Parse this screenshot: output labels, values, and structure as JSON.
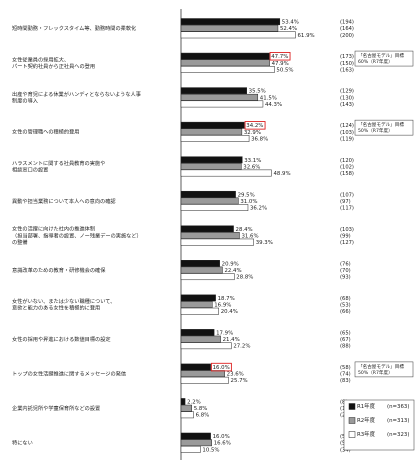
{
  "chart_data": {
    "type": "bar",
    "orientation": "horizontal",
    "xlim": [
      0,
      100
    ],
    "categories": [
      [
        "短時間勤務・フレックスタイム等、勤務時間の柔軟化"
      ],
      [
        "女性従業員の採用拡大、",
        "パート契約社員から正社員への登用"
      ],
      [
        "出産や育児による休業がハンディとならないような人事",
        "制度の導入"
      ],
      [
        "女性の管理職への積極的登用"
      ],
      [
        "ハラスメントに関する社員教育の実施や",
        "相談窓口の設置"
      ],
      [
        "異動や担当業務について本人への意向の確認"
      ],
      [
        "女性の活躍に向けた社内の推進体制",
        "（担当部署、指導者の設置、ノー残業デーの実施など）",
        "の整備"
      ],
      [
        "意識改革のための教育・研修機会の確保"
      ],
      [
        "女性がいない、または少ない職種について、",
        "意欲と能力のある女性を積極的に登用"
      ],
      [
        "女性の採用や昇進における数値目標の設定"
      ],
      [
        "トップの女性活躍推進に関するメッセージの発信"
      ],
      [
        "企業内託児所や学童保育所などの設置"
      ],
      [
        "特にない"
      ]
    ],
    "series": [
      {
        "name": "R1年度",
        "color": "#111111",
        "values": [
          53.4,
          47.7,
          35.5,
          34.2,
          33.1,
          29.5,
          28.4,
          20.9,
          18.7,
          17.9,
          16.0,
          2.2,
          16.0
        ],
        "counts": [
          "(194)",
          "(173)",
          "(129)",
          "(124)",
          "(120)",
          "(107)",
          "(103)",
          "(76)",
          "(68)",
          "(65)",
          "(58)",
          "(8)",
          "(58)"
        ]
      },
      {
        "name": "R2年度",
        "color": "#9a9a9a",
        "values": [
          52.4,
          47.9,
          41.5,
          32.9,
          32.6,
          31.0,
          31.6,
          22.4,
          16.9,
          21.4,
          23.6,
          5.8,
          16.6
        ],
        "counts": [
          "(164)",
          "(150)",
          "(130)",
          "(103)",
          "(102)",
          "(97)",
          "(99)",
          "(70)",
          "(53)",
          "(67)",
          "(74)",
          "(18)",
          "(52)"
        ]
      },
      {
        "name": "R3年度",
        "color": "#ffffff",
        "values": [
          61.9,
          50.5,
          44.3,
          36.8,
          48.9,
          36.2,
          39.3,
          28.8,
          20.4,
          27.2,
          25.7,
          6.8,
          10.5
        ],
        "counts": [
          "(200)",
          "(163)",
          "(143)",
          "(119)",
          "(158)",
          "(117)",
          "(127)",
          "(93)",
          "(66)",
          "(88)",
          "(83)",
          "(22)",
          "(34)"
        ]
      }
    ],
    "highlights": [
      {
        "category_index": 1,
        "series_index": 0,
        "value": "47.7%"
      },
      {
        "category_index": 3,
        "series_index": 0,
        "value": "34.2%"
      },
      {
        "category_index": 10,
        "series_index": 0,
        "value": "16.0%"
      }
    ],
    "callouts": [
      {
        "category_index": 1,
        "lines": [
          "「名古屋モデル」目標",
          "60%（R7年度）"
        ]
      },
      {
        "category_index": 3,
        "lines": [
          "「名古屋モデル」目標",
          "50%（R7年度）"
        ]
      },
      {
        "category_index": 10,
        "lines": [
          "「名古屋モデル」目標",
          "50%（R7年度）"
        ]
      }
    ],
    "legend": {
      "placement": "bottom-right",
      "items": [
        {
          "name": "R1年度",
          "n": "(n=363)"
        },
        {
          "name": "R2年度",
          "n": "(n=313)"
        },
        {
          "name": "R3年度",
          "n": "(n=323)"
        }
      ]
    }
  }
}
